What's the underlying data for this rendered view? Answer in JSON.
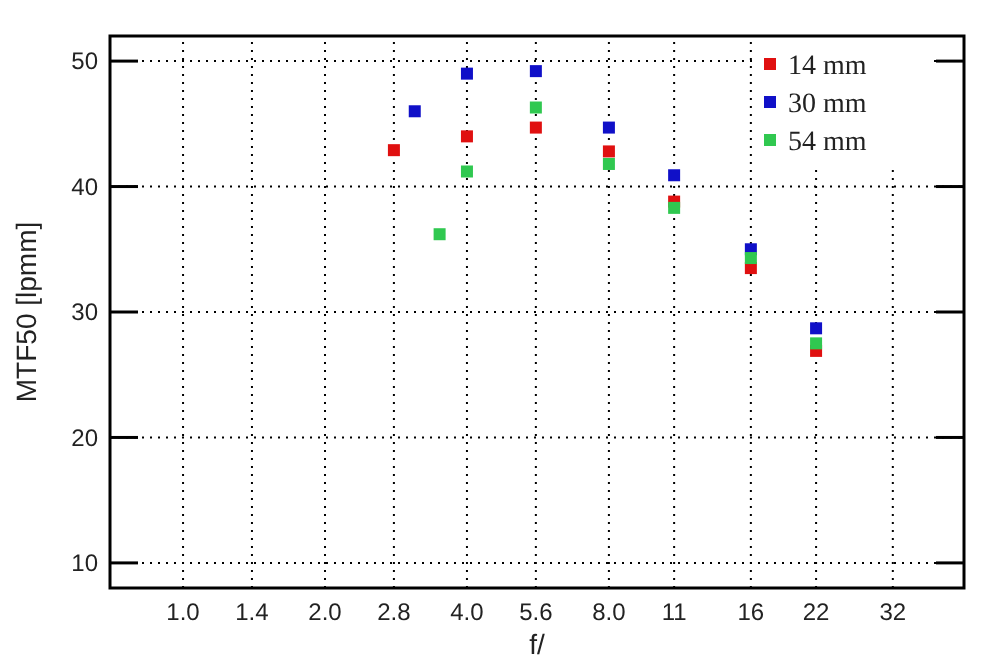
{
  "chart_data": {
    "type": "scatter",
    "xlabel": "f/",
    "ylabel": "MTF50 [lpmm]",
    "log": "x",
    "xlim": [
      0.7,
      45.3
    ],
    "xticks": [
      {
        "value": 1,
        "label": "1.0"
      },
      1.4,
      {
        "value": 2,
        "label": "2.0"
      },
      2.8,
      {
        "value": 4,
        "label": "4.0"
      },
      5.6,
      {
        "value": 8,
        "label": "8.0"
      },
      11,
      16,
      22,
      32
    ],
    "ylim": [
      8,
      52
    ],
    "yticks": [
      10,
      20,
      30,
      40,
      50
    ],
    "grid": true,
    "legend": "top right",
    "marker": "square",
    "series": [
      {
        "name": "14 mm",
        "color": "#e01010",
        "x": [
          2.8,
          4,
          5.6,
          8,
          11,
          16,
          22
        ],
        "values": [
          42.9,
          44.0,
          44.7,
          42.8,
          38.8,
          33.5,
          26.9
        ]
      },
      {
        "name": "30 mm",
        "color": "#1010c8",
        "x": [
          3.1,
          4,
          5.6,
          8,
          11,
          16,
          22
        ],
        "values": [
          46.0,
          49.0,
          49.2,
          44.7,
          40.9,
          35.0,
          28.7
        ]
      },
      {
        "name": "54 mm",
        "color": "#30c850",
        "x": [
          3.5,
          4,
          5.6,
          8,
          11,
          16,
          22
        ],
        "values": [
          36.2,
          41.2,
          46.3,
          41.8,
          38.3,
          34.3,
          27.5
        ]
      }
    ]
  }
}
